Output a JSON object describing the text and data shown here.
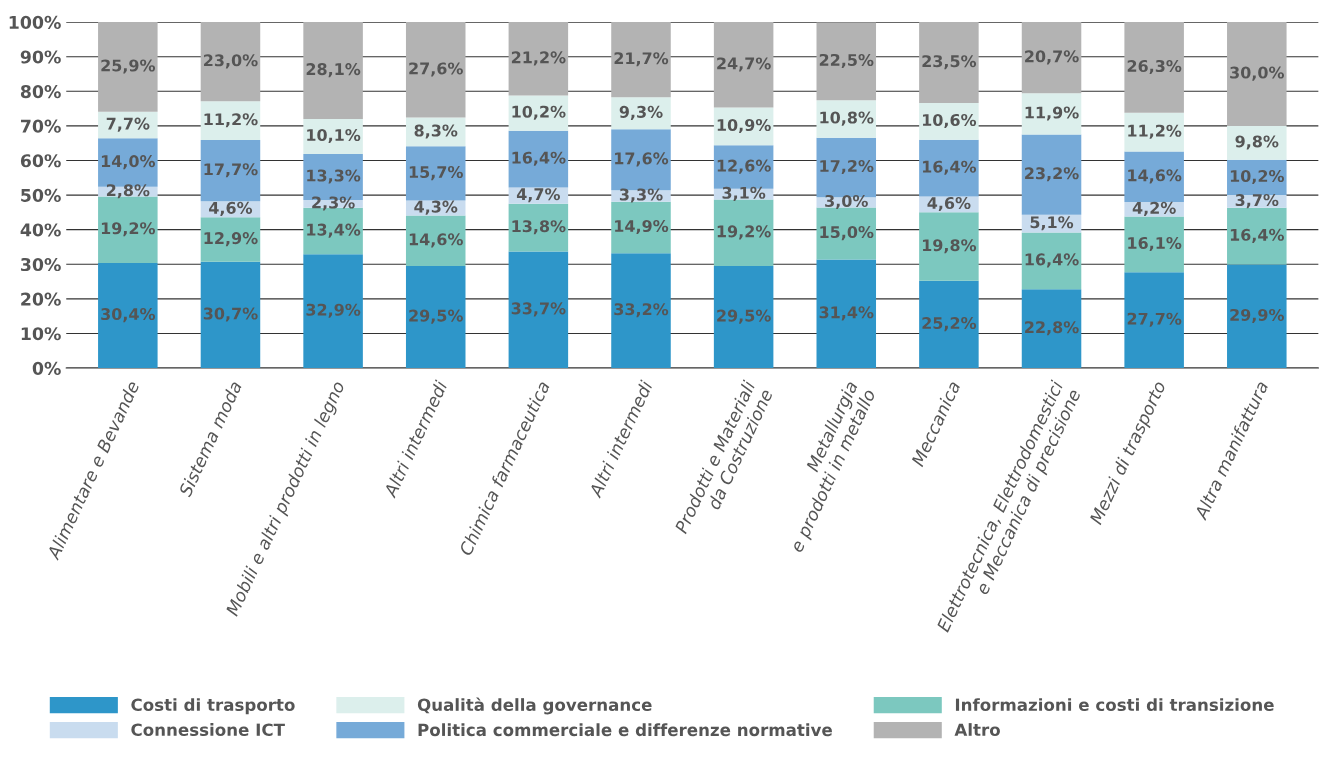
{
  "chart_data": {
    "type": "bar",
    "stacked": true,
    "categories": [
      "Alimentare e Bevande",
      "Sistema moda",
      "Mobili e altri prodotti in legno",
      "Altri intermedi",
      "Chimica farmaceutica",
      "Altri intermedi",
      "Prodotti e Materiali\nda Costruzione",
      "Metallurgia\ne prodotti in metallo",
      "Meccanica",
      "Elettrotecnica, Elettrodomestici\ne Meccanica di precisione",
      "Mezzi di trasporto",
      "Altra manifattura"
    ],
    "series": [
      {
        "name": "Costi di trasporto",
        "color": "#2e96c9",
        "values": [
          30.4,
          30.7,
          32.9,
          29.5,
          33.7,
          33.2,
          29.5,
          31.4,
          25.2,
          22.8,
          27.7,
          29.9
        ],
        "value_labels": [
          "30,4%",
          "30,7%",
          "32,9%",
          "29,5%",
          "33,7%",
          "33,2%",
          "29,5%",
          "31,4%",
          "25,2%",
          "22,8%",
          "27,7%",
          "29,9%"
        ]
      },
      {
        "name": "Informazioni e costi di transizione",
        "color": "#7cc8bf",
        "values": [
          19.2,
          12.9,
          13.4,
          14.6,
          13.8,
          14.9,
          19.2,
          15.0,
          19.8,
          16.4,
          16.1,
          16.4
        ],
        "value_labels": [
          "19,2%",
          "12,9%",
          "13,4%",
          "14,6%",
          "13,8%",
          "14,9%",
          "19,2%",
          "15,0%",
          "19,8%",
          "16,4%",
          "16,1%",
          "16,4%"
        ]
      },
      {
        "name": "Connessione ICT",
        "color": "#c9dcef",
        "values": [
          2.8,
          4.6,
          2.3,
          4.3,
          4.7,
          3.3,
          3.1,
          3.0,
          4.6,
          5.1,
          4.2,
          3.7
        ],
        "value_labels": [
          "2,8%",
          "4,6%",
          "2,3%",
          "4,3%",
          "4,7%",
          "3,3%",
          "3,1%",
          "3,0%",
          "4,6%",
          "5,1%",
          "4,2%",
          "3,7%"
        ]
      },
      {
        "name": "Politica commerciale e differenze normative",
        "color": "#76aad8",
        "values": [
          14.0,
          17.7,
          13.3,
          15.7,
          16.4,
          17.6,
          12.6,
          17.2,
          16.4,
          23.2,
          14.6,
          10.2
        ],
        "value_labels": [
          "14,0%",
          "17,7%",
          "13,3%",
          "15,7%",
          "16,4%",
          "17,6%",
          "12,6%",
          "17,2%",
          "16,4%",
          "23,2%",
          "14,6%",
          "10,2%"
        ]
      },
      {
        "name": "Qualità della governance",
        "color": "#dcefec",
        "values": [
          7.7,
          11.2,
          10.1,
          8.3,
          10.2,
          9.3,
          10.9,
          10.8,
          10.6,
          11.9,
          11.2,
          9.8
        ],
        "value_labels": [
          "7,7%",
          "11,2%",
          "10,1%",
          "8,3%",
          "10,2%",
          "9,3%",
          "10,9%",
          "10,8%",
          "10,6%",
          "11,9%",
          "11,2%",
          "9,8%"
        ]
      },
      {
        "name": "Altro",
        "color": "#b3b3b3",
        "values": [
          25.9,
          23.0,
          28.1,
          27.6,
          21.2,
          21.7,
          24.7,
          22.5,
          23.5,
          20.7,
          26.3,
          30.0
        ],
        "value_labels": [
          "25,9%",
          "23,0%",
          "28,1%",
          "27,6%",
          "21,2%",
          "21,7%",
          "24,7%",
          "22,5%",
          "23,5%",
          "20,7%",
          "26,3%",
          "30,0%"
        ]
      }
    ],
    "ylim": [
      0,
      100
    ],
    "yticks": [
      {
        "value": 0,
        "label": "0%"
      },
      {
        "value": 10,
        "label": "10%"
      },
      {
        "value": 20,
        "label": "20%"
      },
      {
        "value": 30,
        "label": "30%"
      },
      {
        "value": 40,
        "label": "40%"
      },
      {
        "value": 50,
        "label": "50%"
      },
      {
        "value": 60,
        "label": "60%"
      },
      {
        "value": 70,
        "label": "70%"
      },
      {
        "value": 80,
        "label": "80%"
      },
      {
        "value": 90,
        "label": "90%"
      },
      {
        "value": 100,
        "label": "100%"
      }
    ],
    "grid": "y",
    "legend": "bottom"
  }
}
